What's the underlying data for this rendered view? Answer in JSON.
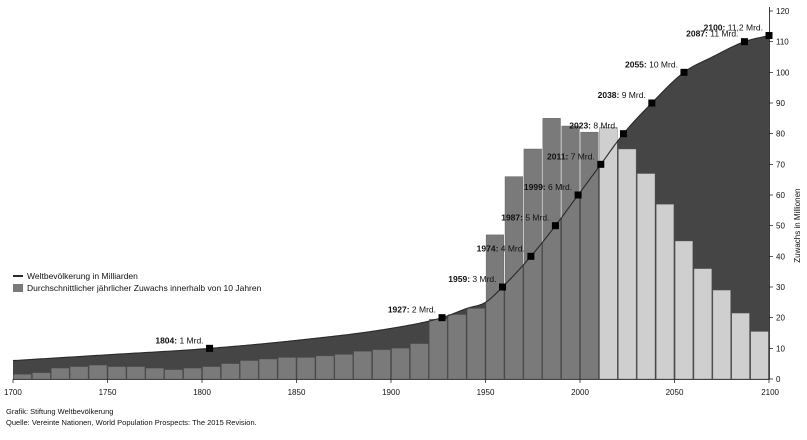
{
  "chart_data": {
    "type": "bar",
    "x_axis": {
      "range": [
        1700,
        2100
      ],
      "ticks": [
        "1700",
        "1750",
        "1800",
        "1850",
        "1900",
        "1950",
        "2000",
        "2050",
        "2100"
      ]
    },
    "y_axis": {
      "label": "Zuwachs in Millionen",
      "range": [
        0,
        120
      ],
      "ticks": [
        "0",
        "10",
        "20",
        "30",
        "40",
        "50",
        "60",
        "70",
        "80",
        "90",
        "100",
        "110",
        "120"
      ],
      "position": "right"
    },
    "population": {
      "name": "Weltbevölkerung in Milliarden",
      "unit": "Mrd.",
      "curve": [
        [
          1700,
          0.6
        ],
        [
          1750,
          0.79
        ],
        [
          1800,
          0.98
        ],
        [
          1850,
          1.26
        ],
        [
          1900,
          1.65
        ],
        [
          1927,
          2
        ],
        [
          1940,
          2.3
        ],
        [
          1950,
          2.5
        ],
        [
          1959,
          3
        ],
        [
          1974,
          4
        ],
        [
          1987,
          5
        ],
        [
          1999,
          6
        ],
        [
          2011,
          7
        ],
        [
          2023,
          8
        ],
        [
          2038,
          9
        ],
        [
          2055,
          10
        ],
        [
          2070,
          10.5
        ],
        [
          2087,
          11
        ],
        [
          2100,
          11.2
        ]
      ],
      "milestones": [
        {
          "year": 1804,
          "value": 1,
          "label": "1804:",
          "value_label": "1 Mrd."
        },
        {
          "year": 1927,
          "value": 2,
          "label": "1927:",
          "value_label": "2 Mrd."
        },
        {
          "year": 1959,
          "value": 3,
          "label": "1959:",
          "value_label": "3 Mrd."
        },
        {
          "year": 1974,
          "value": 4,
          "label": "1974:",
          "value_label": "4 Mrd."
        },
        {
          "year": 1987,
          "value": 5,
          "label": "1987:",
          "value_label": "5 Mrd."
        },
        {
          "year": 1999,
          "value": 6,
          "label": "1999:",
          "value_label": "6 Mrd."
        },
        {
          "year": 2011,
          "value": 7,
          "label": "2011:",
          "value_label": "7 Mrd."
        },
        {
          "year": 2023,
          "value": 8,
          "label": "2023:",
          "value_label": "8 Mrd."
        },
        {
          "year": 2038,
          "value": 9,
          "label": "2038:",
          "value_label": "9 Mrd."
        },
        {
          "year": 2055,
          "value": 10,
          "label": "2055:",
          "value_label": "10 Mrd."
        },
        {
          "year": 2087,
          "value": 11,
          "label": "2087:",
          "value_label": "11 Mrd."
        },
        {
          "year": 2100,
          "value": 11.2,
          "label": "2100:",
          "value_label": "11,2 Mrd."
        }
      ]
    },
    "growth": {
      "name": "Durchschnittlicher jährlicher Zuwachs innerhalb von 10 Jahren",
      "unit": "Millionen",
      "bars": [
        {
          "start": 1700,
          "value": 1.5
        },
        {
          "start": 1710,
          "value": 2
        },
        {
          "start": 1720,
          "value": 3.5
        },
        {
          "start": 1730,
          "value": 4
        },
        {
          "start": 1740,
          "value": 4.5
        },
        {
          "start": 1750,
          "value": 4
        },
        {
          "start": 1760,
          "value": 4
        },
        {
          "start": 1770,
          "value": 3.5
        },
        {
          "start": 1780,
          "value": 3
        },
        {
          "start": 1790,
          "value": 3.5
        },
        {
          "start": 1800,
          "value": 4
        },
        {
          "start": 1810,
          "value": 5
        },
        {
          "start": 1820,
          "value": 6
        },
        {
          "start": 1830,
          "value": 6.5
        },
        {
          "start": 1840,
          "value": 7
        },
        {
          "start": 1850,
          "value": 7
        },
        {
          "start": 1860,
          "value": 7.5
        },
        {
          "start": 1870,
          "value": 8
        },
        {
          "start": 1880,
          "value": 9
        },
        {
          "start": 1890,
          "value": 9.5
        },
        {
          "start": 1900,
          "value": 10
        },
        {
          "start": 1910,
          "value": 11.5
        },
        {
          "start": 1920,
          "value": 19.5
        },
        {
          "start": 1930,
          "value": 21
        },
        {
          "start": 1940,
          "value": 23
        },
        {
          "start": 1950,
          "value": 47
        },
        {
          "start": 1960,
          "value": 66
        },
        {
          "start": 1970,
          "value": 75
        },
        {
          "start": 1980,
          "value": 85
        },
        {
          "start": 1990,
          "value": 82.5
        },
        {
          "start": 2000,
          "value": 80.5
        },
        {
          "start": 2010,
          "value": 82,
          "projected": true
        },
        {
          "start": 2020,
          "value": 75,
          "projected": true
        },
        {
          "start": 2030,
          "value": 67,
          "projected": true
        },
        {
          "start": 2040,
          "value": 57,
          "projected": true
        },
        {
          "start": 2050,
          "value": 45,
          "projected": true
        },
        {
          "start": 2060,
          "value": 36,
          "projected": true
        },
        {
          "start": 2070,
          "value": 29,
          "projected": true
        },
        {
          "start": 2080,
          "value": 21.5,
          "projected": true
        },
        {
          "start": 2090,
          "value": 15.5,
          "projected": true
        }
      ]
    },
    "legend": {
      "placement": "left",
      "items": [
        {
          "label": "Weltbevölkerung in Milliarden",
          "kind": "line"
        },
        {
          "label": "Durchschnittlicher jährlicher Zuwachs innerhalb von 10 Jahren",
          "kind": "bar"
        }
      ]
    },
    "colors": {
      "area": "#454545",
      "bar": "#7a7a7a",
      "bar_projected": "#cfcfcf",
      "bar_edge": "#5a5a5a",
      "marker": "#000000"
    },
    "credits": [
      "Grafik: Stiftung Weltbevölkerung",
      "Quelle: Vereinte Nationen, World Population Prospects: The 2015 Revision."
    ]
  }
}
